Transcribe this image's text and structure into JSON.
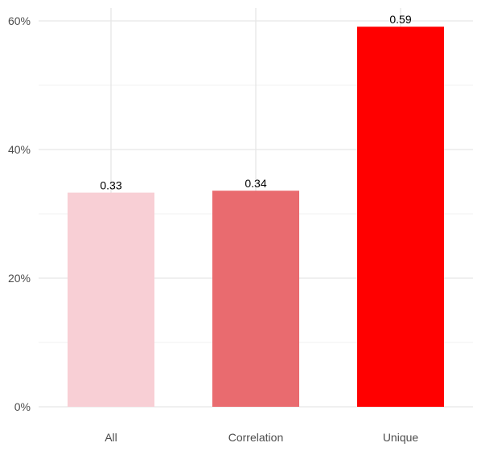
{
  "chart_data": {
    "type": "bar",
    "title": "",
    "xlabel": "",
    "ylabel": "",
    "categories": [
      "All",
      "Correlation",
      "Unique"
    ],
    "values": [
      0.333,
      0.336,
      0.591
    ],
    "data_labels": [
      "0.33",
      "0.34",
      "0.59"
    ],
    "colors": [
      "#f8cfd5",
      "#e96b6f",
      "#ff0000"
    ],
    "ylim": [
      0,
      0.6
    ],
    "y_ticks": [
      0,
      0.2,
      0.4,
      0.6
    ],
    "y_tick_labels": [
      "0%",
      "20%",
      "40%",
      "60%"
    ],
    "grid": true,
    "legend": "none"
  }
}
